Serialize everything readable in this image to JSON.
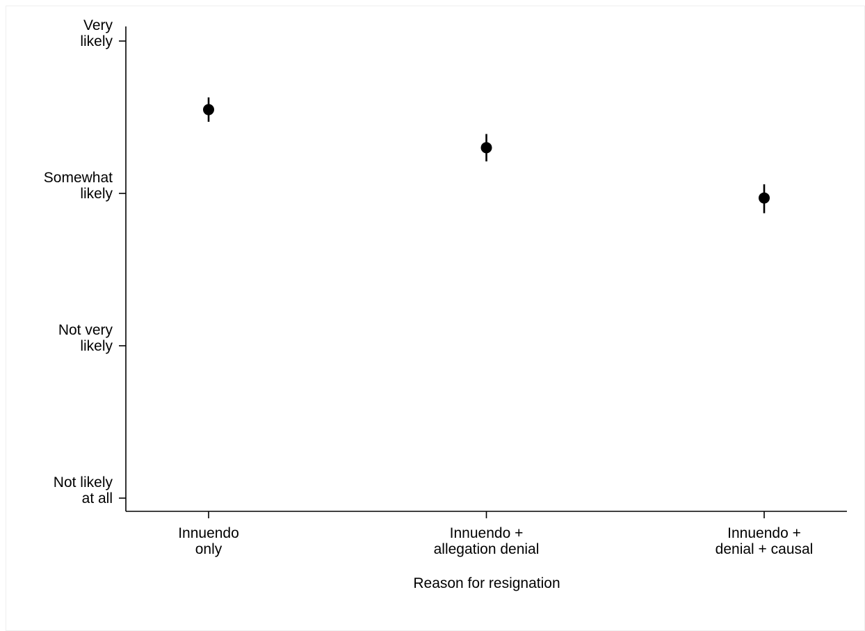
{
  "chart_data": {
    "type": "scatter",
    "categories": [
      [
        "Innuendo",
        "only"
      ],
      [
        "Innuendo +",
        "allegation denial"
      ],
      [
        "Innuendo +",
        "denial + causal"
      ]
    ],
    "series": [
      {
        "values": [
          3.55,
          3.3,
          2.97
        ],
        "ci_low": [
          3.47,
          3.21,
          2.87
        ],
        "ci_high": [
          3.63,
          3.39,
          3.06
        ]
      }
    ],
    "y_ticks": [
      {
        "value": 1,
        "label": [
          "Not likely",
          "at all"
        ]
      },
      {
        "value": 2,
        "label": [
          "Not very",
          "likely"
        ]
      },
      {
        "value": 3,
        "label": [
          "Somewhat",
          "likely"
        ]
      },
      {
        "value": 4,
        "label": [
          "Very",
          "likely"
        ]
      }
    ],
    "ylim": [
      0.9,
      4.1
    ],
    "xlabel": "Reason for resignation",
    "ylabel": "",
    "grid": false,
    "colors": {
      "marker": "#000000",
      "axis": "#000000"
    }
  }
}
